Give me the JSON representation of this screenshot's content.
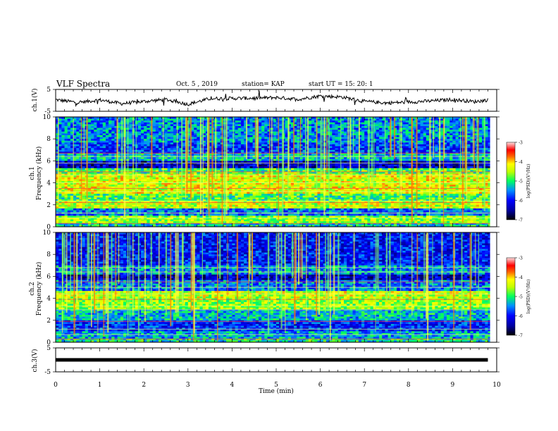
{
  "header": {
    "title": "VLF Spectra",
    "date": "Oct. 5  , 2019",
    "station": "station= KAP",
    "start": "start  UT =   15: 20: 1"
  },
  "colors": {
    "spectrogram_scale": [
      "#000080",
      "#0000ff",
      "#0080ff",
      "#00ffff",
      "#80ff80",
      "#ffff00",
      "#ff8000",
      "#ff0000",
      "#ffc0c0",
      "#ffffff"
    ],
    "trace": "#000000"
  },
  "chart_data": [
    {
      "type": "line",
      "name": "ch1-waveform",
      "ylabel": "ch.1(V)",
      "ylim": [
        -5,
        5
      ],
      "yticks": [
        "5",
        "-5"
      ],
      "xlim": [
        0,
        10
      ],
      "description_level_hint": "noisy trace around 0 V",
      "x": [
        0,
        0.5,
        1,
        1.5,
        2,
        2.5,
        3,
        3.5,
        4,
        4.5,
        5,
        5.5,
        6,
        6.5,
        7,
        7.5,
        8,
        8.5,
        9,
        9.5,
        9.8
      ],
      "y": [
        0.3,
        -1.0,
        0.2,
        -1.5,
        -0.5,
        0.4,
        -1.8,
        0.8,
        0.9,
        1.0,
        1.3,
        0.5,
        2.0,
        1.5,
        -0.5,
        -1.2,
        -0.8,
        -0.3,
        0.4,
        -0.6,
        0.2
      ]
    },
    {
      "type": "heatmap",
      "name": "ch1-spectrogram",
      "ylabel": "ch.1\nFrequency (kHz)",
      "ylim": [
        0,
        10
      ],
      "yticks": [
        "0",
        "2",
        "4",
        "6",
        "8",
        "10"
      ],
      "xlim": [
        0,
        10
      ],
      "colorbar": {
        "label": "log(PSD)(V²/Hz)",
        "ticks": [
          "-3",
          "-4",
          "-5",
          "-6",
          "-7"
        ],
        "range": [
          -7,
          -3
        ]
      }
    },
    {
      "type": "heatmap",
      "name": "ch2-spectrogram",
      "ylabel": "ch.2\nFrequency (kHz)",
      "ylim": [
        0,
        10
      ],
      "yticks": [
        "0",
        "2",
        "4",
        "6",
        "8",
        "10"
      ],
      "xlim": [
        0,
        10
      ],
      "colorbar": {
        "label": "log(PSD)(V²/Hz)",
        "ticks": [
          "-3",
          "-4",
          "-5",
          "-6",
          "-7"
        ],
        "range": [
          -7,
          -3
        ]
      }
    },
    {
      "type": "line",
      "name": "ch3-waveform",
      "ylabel": "ch.3(V)",
      "ylim": [
        -5,
        5
      ],
      "yticks": [
        "5",
        "-5"
      ],
      "xlim": [
        0,
        10
      ],
      "x": [
        0,
        9.8
      ],
      "y": [
        0,
        0
      ]
    }
  ],
  "xaxis": {
    "label": "Time  (min)",
    "ticks": [
      "0",
      "1",
      "2",
      "3",
      "4",
      "5",
      "6",
      "7",
      "8",
      "9",
      "10"
    ]
  },
  "labels": {
    "ch1_v": "ch.1(V)",
    "ch1_freq_top": "ch.1",
    "ch1_freq_bottom": "Frequency (kHz)",
    "ch2_freq_top": "ch.2",
    "ch2_freq_bottom": "Frequency (kHz)",
    "ch3_v": "ch.3(V)",
    "colorbar_label": "log(PSD)(V²/Hz)"
  }
}
